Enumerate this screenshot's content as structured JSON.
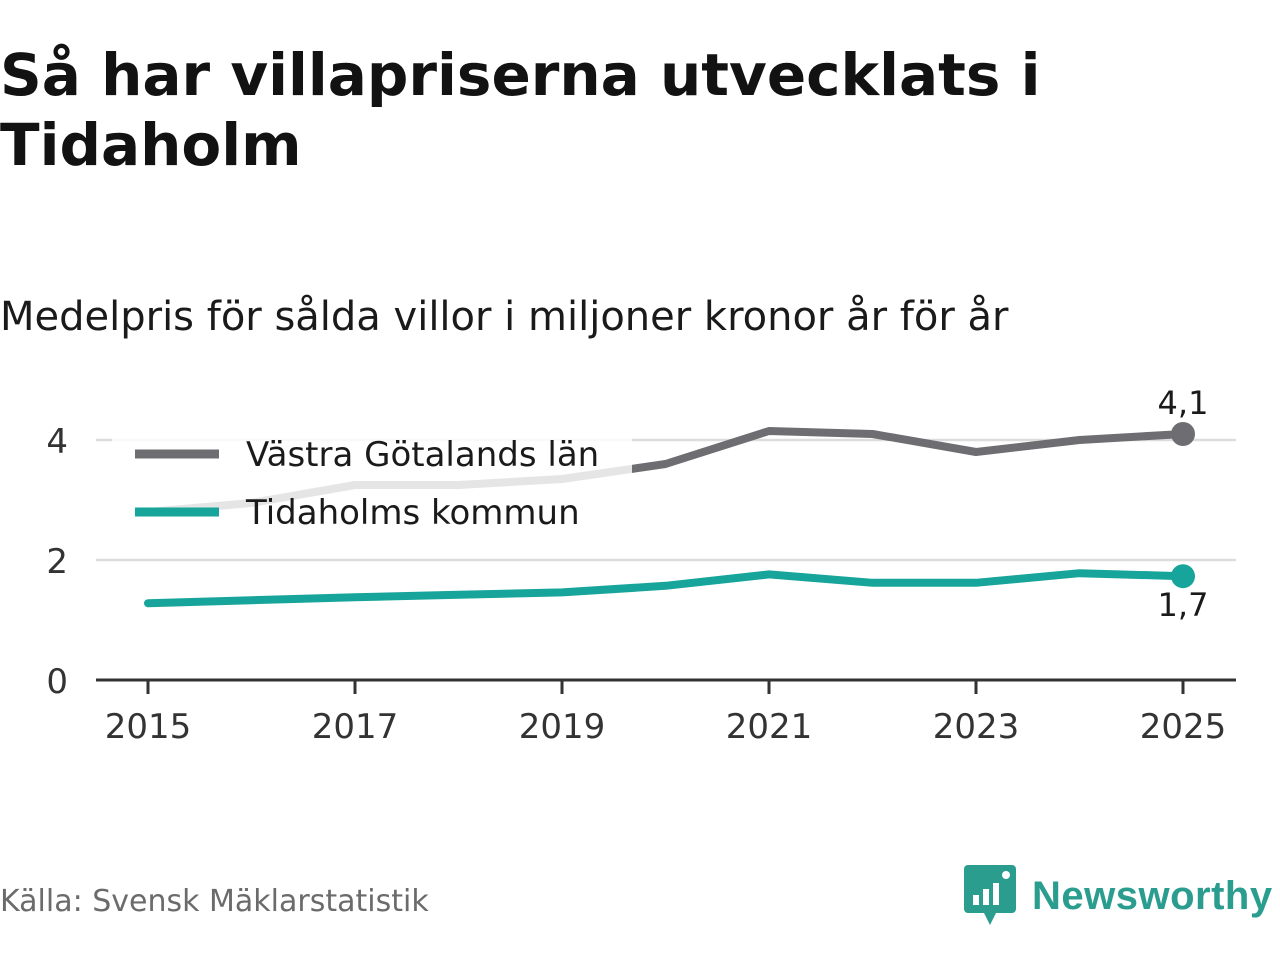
{
  "header": {
    "title": "Så har villapriserna utvecklats i Tidaholm",
    "subtitle": "Medelpris för sålda villor i miljoner kronor år för år"
  },
  "footer": {
    "source": "Källa: Svensk Mäklarstatistik",
    "brand": "Newsworthy"
  },
  "colors": {
    "region": "#6e6d72",
    "municipality": "#17a59b",
    "grid": "#dddddd",
    "axis": "#333333",
    "brand": "#2a9d8f"
  },
  "chart_data": {
    "type": "line",
    "title": "Så har villapriserna utvecklats i Tidaholm",
    "subtitle": "Medelpris för sålda villor i miljoner kronor år för år",
    "xlabel": "",
    "ylabel": "",
    "x": [
      2015,
      2016,
      2017,
      2018,
      2019,
      2020,
      2021,
      2022,
      2023,
      2024,
      2025
    ],
    "xticks": [
      "2015",
      "2017",
      "2019",
      "2021",
      "2023",
      "2025"
    ],
    "xlim": [
      2015,
      2025
    ],
    "ylim": [
      0,
      4.5
    ],
    "yticks": [
      "0",
      "2",
      "4"
    ],
    "grid": true,
    "legend_position": "top-left",
    "series": [
      {
        "name": "Västra Götalands län",
        "color": "#6e6d72",
        "values": [
          2.8,
          2.95,
          3.25,
          3.25,
          3.35,
          3.6,
          4.15,
          4.1,
          3.8,
          4.0,
          4.1
        ],
        "end_label": "4,1"
      },
      {
        "name": "Tidaholms kommun",
        "color": "#17a59b",
        "values": [
          1.28,
          1.33,
          1.38,
          1.42,
          1.46,
          1.57,
          1.76,
          1.62,
          1.62,
          1.78,
          1.73
        ],
        "end_label": "1,7"
      }
    ]
  }
}
